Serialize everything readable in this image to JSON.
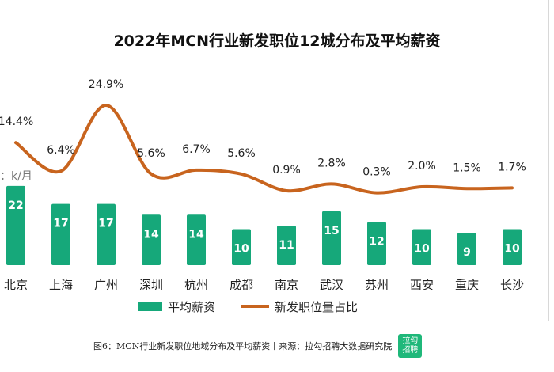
{
  "chart_data": {
    "type": "bar+line",
    "title": "2022年MCN行业新发职位12城分布及平均薪资",
    "unit_label": "位：k/月",
    "categories": [
      "北京",
      "上海",
      "广州",
      "深圳",
      "杭州",
      "成都",
      "南京",
      "武汉",
      "苏州",
      "西安",
      "重庆",
      "长沙"
    ],
    "series": [
      {
        "name": "平均薪资",
        "type": "bar",
        "color": "#16a87a",
        "values": [
          22,
          17,
          17,
          14,
          14,
          10,
          11,
          15,
          12,
          10,
          9,
          10
        ]
      },
      {
        "name": "新发职位量占比",
        "type": "line",
        "color": "#c8641e",
        "values": [
          14.4,
          6.4,
          24.9,
          5.6,
          6.7,
          5.6,
          0.9,
          2.8,
          0.3,
          2.0,
          1.5,
          1.7
        ],
        "labels": [
          "14.4%",
          "6.4%",
          "24.9%",
          "5.6%",
          "6.7%",
          "5.6%",
          "0.9%",
          "2.8%",
          "0.3%",
          "2.0%",
          "1.5%",
          "1.7%"
        ]
      }
    ],
    "legend_placement": "bottom"
  },
  "caption": "图6：MCN行业新发职位地域分布及平均薪资丨来源：拉勾招聘大数据研究院",
  "logo_text": "拉勾招聘"
}
